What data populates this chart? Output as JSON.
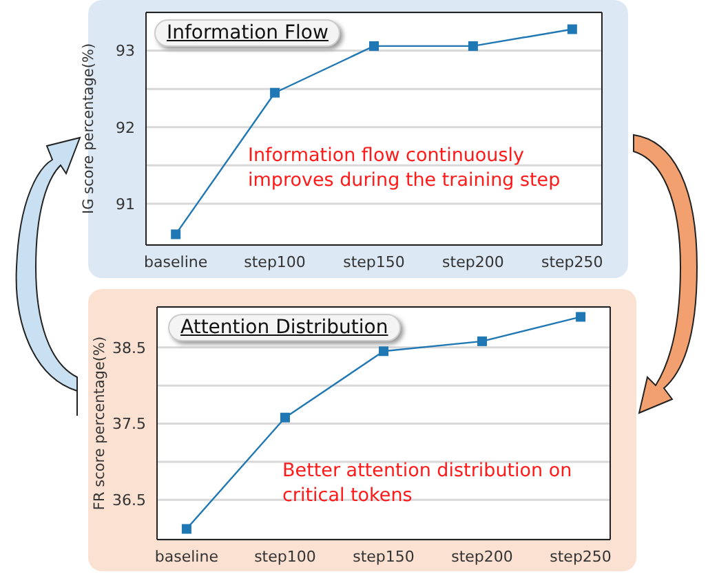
{
  "chart_data": [
    {
      "type": "line",
      "title": "Information Flow",
      "ylabel": "IG score percentage(%)",
      "categories": [
        "baseline",
        "step100",
        "step150",
        "step200",
        "step250"
      ],
      "series": [
        {
          "color": "#1f77b4",
          "values": [
            90.6,
            92.45,
            93.06,
            93.06,
            93.28
          ]
        }
      ],
      "ylim": [
        90.46,
        93.5
      ],
      "yticks": [
        91,
        {
          "value": 91.5,
          "label": null
        },
        92,
        {
          "value": 92.5,
          "label": null
        },
        93
      ],
      "grid": "y",
      "marker": "square",
      "legend": false,
      "annotations": [
        "Information flow continuously improves during the training step"
      ]
    },
    {
      "type": "line",
      "title": "Attention Distribution",
      "ylabel": "FR score percentage(%)",
      "categories": [
        "baseline",
        "step100",
        "step150",
        "step200",
        "step250"
      ],
      "series": [
        {
          "color": "#1f77b4",
          "values": [
            36.12,
            37.58,
            38.45,
            38.58,
            38.9
          ]
        }
      ],
      "ylim": [
        35.98,
        39.03
      ],
      "yticks": [
        36.5,
        {
          "value": 37,
          "label": null
        },
        37.5,
        {
          "value": 38,
          "label": null
        },
        38.5
      ],
      "grid": "y",
      "marker": "square",
      "legend": false,
      "annotations": [
        "Better attention distribution on critical tokens"
      ]
    }
  ]
}
